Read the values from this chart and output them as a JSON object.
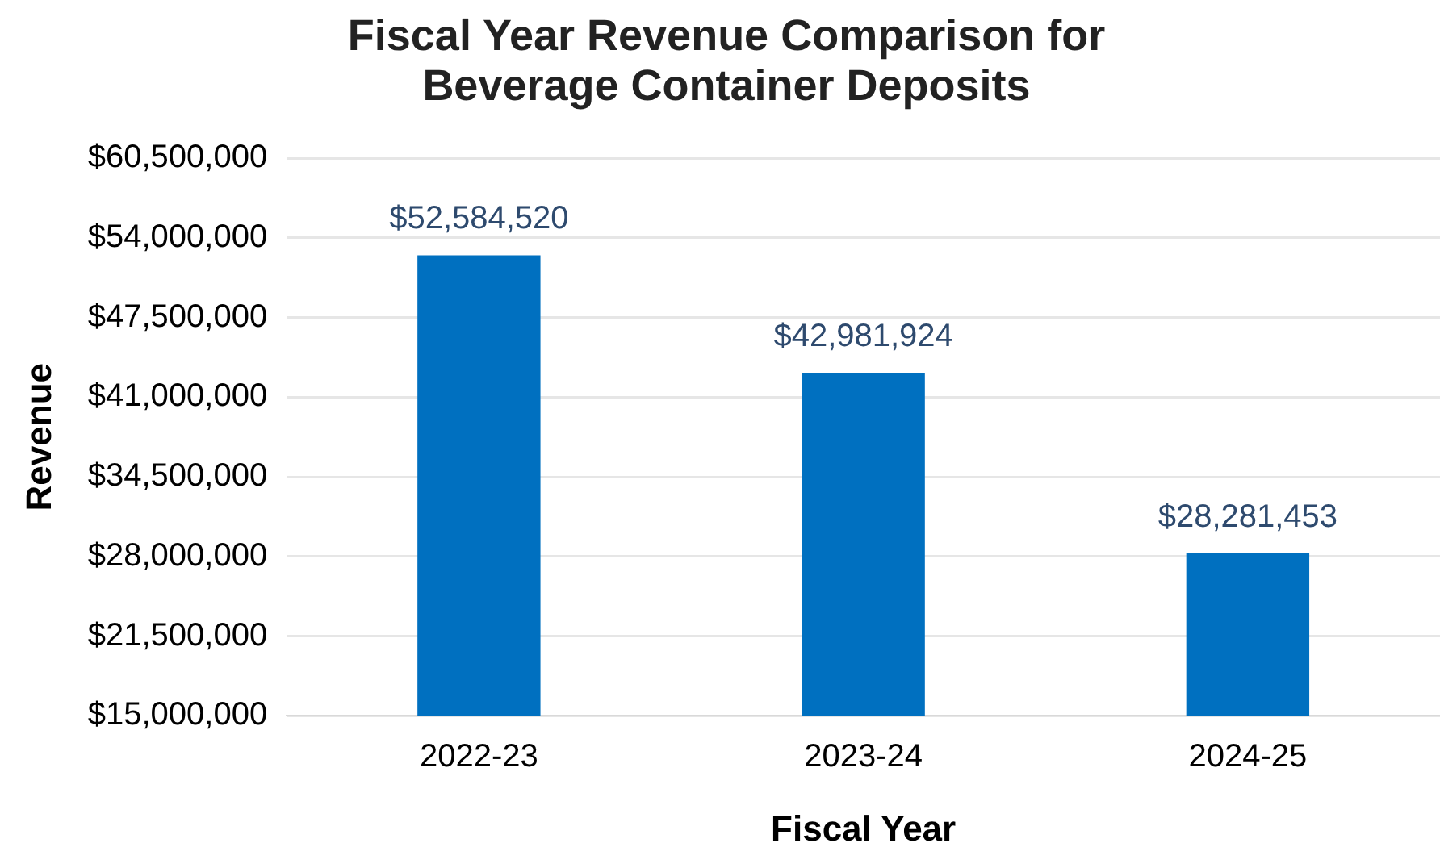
{
  "chart_data": {
    "type": "bar",
    "title": "Fiscal Year Revenue Comparison for Beverage Container Deposits",
    "xlabel": "Fiscal Year",
    "ylabel": "Revenue",
    "categories": [
      "2022-23",
      "2023-24",
      "2024-25"
    ],
    "values": [
      52584520,
      42981924,
      28281453
    ],
    "color": "#0070c0",
    "value_labels": [
      "$52,584,520",
      "$42,981,924",
      "$28,281,453"
    ],
    "ylim": [
      15000000,
      60500000
    ],
    "yticks": [
      {
        "value": 15000000,
        "label": "$15,000,000"
      },
      {
        "value": 21500000,
        "label": "$21,500,000"
      },
      {
        "value": 28000000,
        "label": "$28,000,000"
      },
      {
        "value": 34500000,
        "label": "$34,500,000"
      },
      {
        "value": 41000000,
        "label": "$41,000,000"
      },
      {
        "value": 47500000,
        "label": "$47,500,000"
      },
      {
        "value": 54000000,
        "label": "$54,000,000"
      },
      {
        "value": 60500000,
        "label": "$60,500,000"
      }
    ],
    "grid": "y"
  }
}
